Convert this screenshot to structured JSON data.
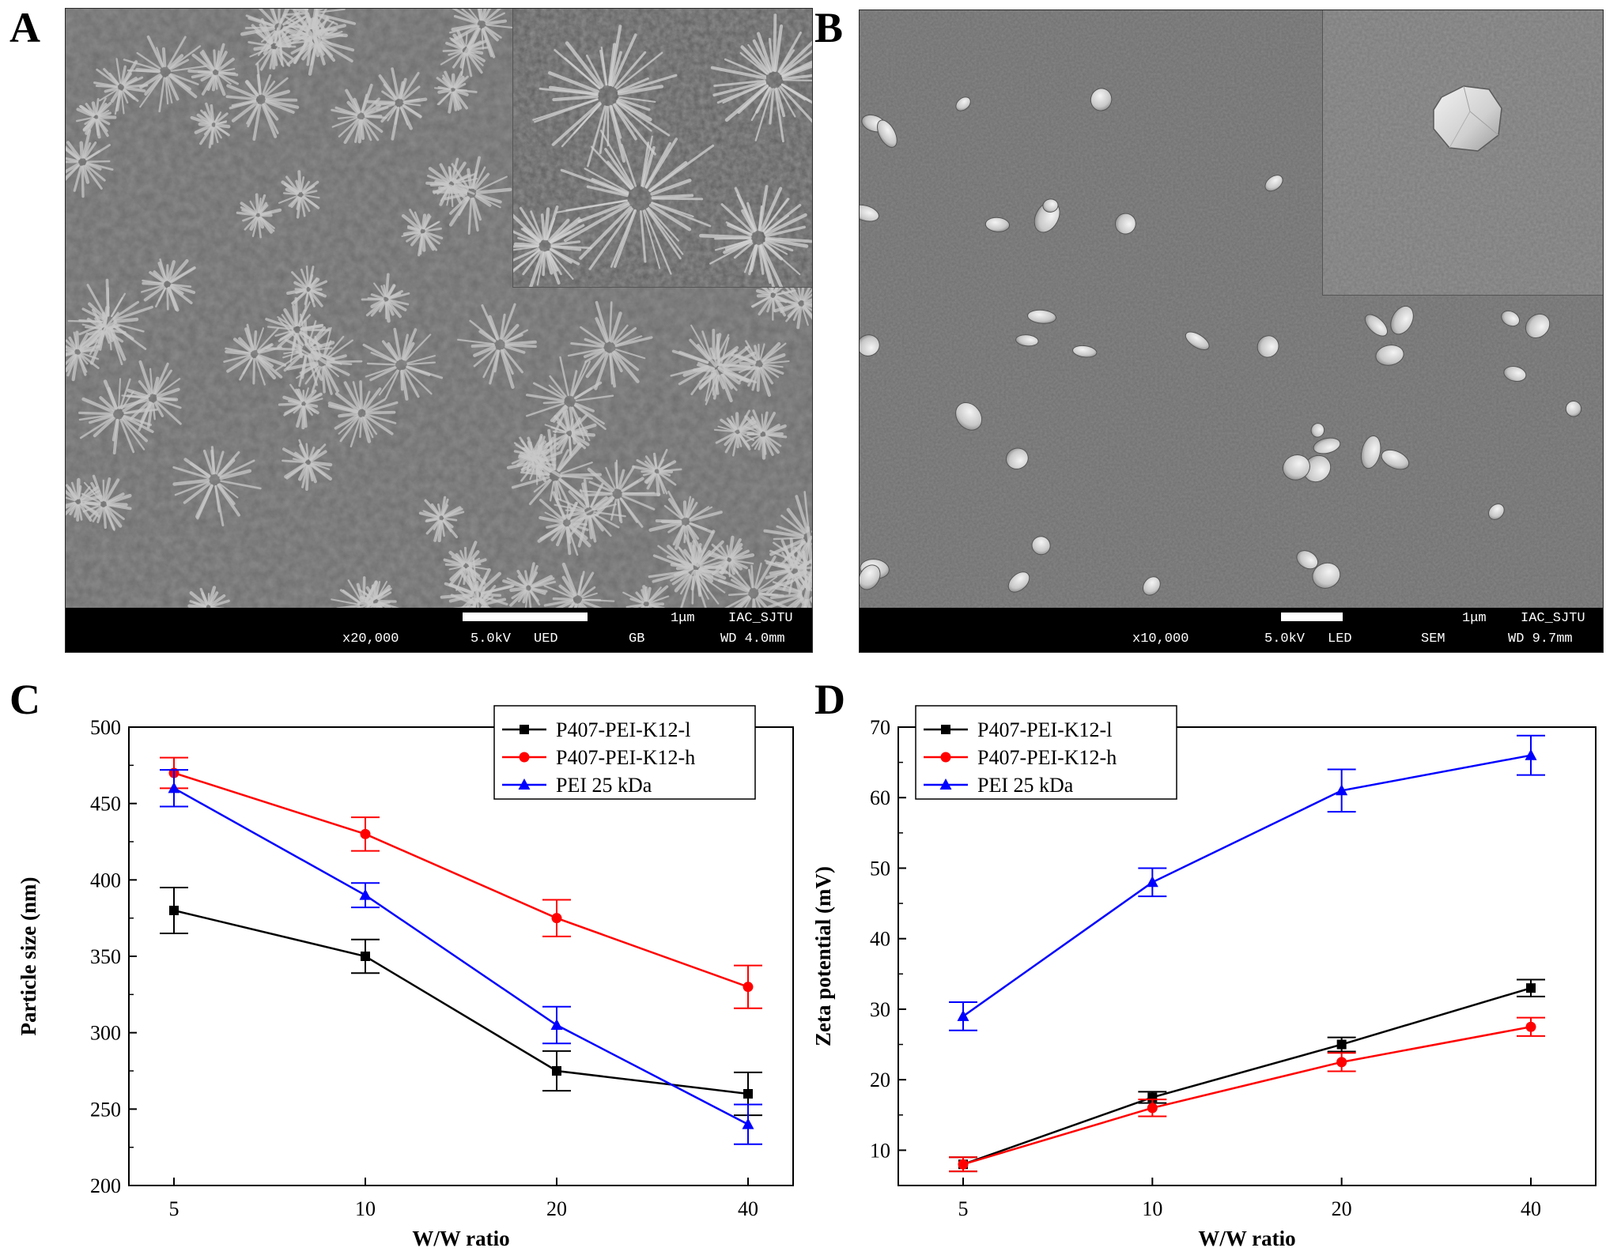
{
  "panels": {
    "a": {
      "letter": "A",
      "inset": true,
      "info_bar": {
        "scale": "1μm",
        "lab": "IAC_SJTU",
        "magnification": "x20,000",
        "voltage": "5.0kV",
        "detector": "UED",
        "mode": "GB",
        "working_distance": "WD 4.0mm"
      }
    },
    "b": {
      "letter": "B",
      "inset": true,
      "info_bar": {
        "scale": "1μm",
        "lab": "IAC_SJTU",
        "magnification": "x10,000",
        "voltage": "5.0kV",
        "detector": "LED",
        "mode": "SEM",
        "working_distance": "WD 9.7mm"
      }
    },
    "c": {
      "letter": "C"
    },
    "d": {
      "letter": "D"
    }
  },
  "colors": {
    "P407-PEI-K12-l": "#000000",
    "P407-PEI-K12-h": "#ff0000",
    "PEI 25 kDa": "#0000ff",
    "sem_background": "#6e6e6e",
    "sem_feature": "#c9c9c9"
  },
  "chart_data": [
    {
      "type": "line",
      "panel": "C",
      "title": "",
      "xlabel": "W/W ratio",
      "ylabel": "Particle size (nm)",
      "categories": [
        "5",
        "10",
        "20",
        "40"
      ],
      "ylim": [
        200,
        500
      ],
      "yticks": [
        200,
        250,
        300,
        350,
        400,
        450,
        500
      ],
      "legend_position": "top-right",
      "series": [
        {
          "name": "P407-PEI-K12-l",
          "marker": "square",
          "color": "#000000",
          "values": [
            380,
            350,
            275,
            260
          ],
          "errors": [
            15,
            11,
            13,
            14
          ]
        },
        {
          "name": "P407-PEI-K12-h",
          "marker": "circle",
          "color": "#ff0000",
          "values": [
            470,
            430,
            375,
            330
          ],
          "errors": [
            10,
            11,
            12,
            14
          ]
        },
        {
          "name": "PEI 25 kDa",
          "marker": "triangle",
          "color": "#0000ff",
          "values": [
            460,
            390,
            305,
            240
          ],
          "errors": [
            12,
            8,
            12,
            13
          ]
        }
      ]
    },
    {
      "type": "line",
      "panel": "D",
      "title": "",
      "xlabel": "W/W ratio",
      "ylabel": "Zeta potential (mV)",
      "categories": [
        "5",
        "10",
        "20",
        "40"
      ],
      "ylim": [
        5,
        70
      ],
      "yticks": [
        10,
        20,
        30,
        40,
        50,
        60,
        70
      ],
      "legend_position": "top-left",
      "series": [
        {
          "name": "P407-PEI-K12-l",
          "marker": "square",
          "color": "#000000",
          "values": [
            8,
            17.5,
            25,
            33
          ],
          "errors": [
            1,
            0.8,
            1,
            1.2
          ]
        },
        {
          "name": "P407-PEI-K12-h",
          "marker": "circle",
          "color": "#ff0000",
          "values": [
            8,
            16,
            22.5,
            27.5
          ],
          "errors": [
            1,
            1.2,
            1.3,
            1.3
          ]
        },
        {
          "name": "PEI 25 kDa",
          "marker": "triangle",
          "color": "#0000ff",
          "values": [
            29,
            48,
            61,
            66
          ],
          "errors": [
            2,
            2,
            3,
            2.8
          ]
        }
      ]
    }
  ]
}
